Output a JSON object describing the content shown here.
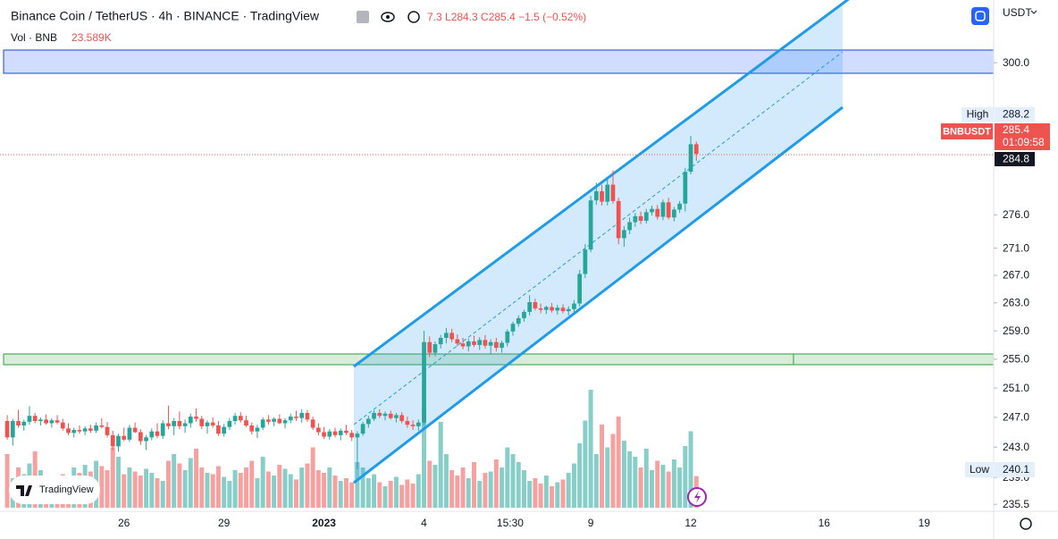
{
  "header": {
    "title": "Binance Coin / TetherUS · 4h · BINANCE · TradingView",
    "ohlc": "7.3 L284.3 C285.4 −1.5 (−0.52%)",
    "vol_name": "Vol · BNB",
    "vol_value": "23.589K",
    "currency": "USDT",
    "logo": "TradingView"
  },
  "chart_data": {
    "type": "candlestick",
    "log": true,
    "ylim": [
      234.6,
      310.5
    ],
    "xlim": [
      -1.3,
      177.5
    ],
    "vol_lim": [
      0,
      100
    ],
    "up_color": "#26a69a",
    "down_color": "#ef5350",
    "yticks": [
      {
        "value": 235.5,
        "label": "235.5"
      },
      {
        "value": 239,
        "label": "239.0"
      },
      {
        "value": 243,
        "label": "243.0"
      },
      {
        "value": 247,
        "label": "247.0"
      },
      {
        "value": 251,
        "label": "251.0"
      },
      {
        "value": 255,
        "label": "255.0"
      },
      {
        "value": 259,
        "label": "259.0"
      },
      {
        "value": 263,
        "label": "263.0"
      },
      {
        "value": 267,
        "label": "267.0"
      },
      {
        "value": 271,
        "label": "271.0"
      },
      {
        "value": 276,
        "label": "276.0"
      },
      {
        "value": 300,
        "label": "300.0"
      }
    ],
    "xticks": [
      {
        "value": 21,
        "label": "26"
      },
      {
        "value": 39,
        "label": "29"
      },
      {
        "value": 57,
        "label": "2023"
      },
      {
        "value": 75,
        "label": "4"
      },
      {
        "value": 90.5,
        "label": "15:30"
      },
      {
        "value": 105,
        "label": "9"
      },
      {
        "value": 123,
        "label": "12"
      },
      {
        "value": 147,
        "label": "16"
      },
      {
        "value": 165,
        "label": "19"
      }
    ],
    "high_label": "High",
    "high": 288.2,
    "symbol": "BNBUSDT",
    "last": 285.4,
    "countdown": "01:09:58",
    "mark_price": 284.8,
    "low_label": "Low",
    "low": 240.1,
    "candles": [
      [
        246.5,
        247.3,
        244.0,
        244.3
      ],
      [
        244.3,
        246.8,
        243.2,
        246.5
      ],
      [
        246.5,
        248.0,
        245.6,
        245.9
      ],
      [
        245.9,
        246.7,
        245.2,
        246.4
      ],
      [
        246.4,
        248.5,
        246.0,
        247.2
      ],
      [
        247.2,
        247.6,
        246.2,
        246.5
      ],
      [
        246.5,
        247.0,
        245.9,
        246.7
      ],
      [
        246.7,
        247.4,
        246.0,
        246.2
      ],
      [
        246.2,
        246.9,
        245.6,
        246.6
      ],
      [
        246.6,
        247.3,
        246.1,
        246.3
      ],
      [
        246.3,
        246.8,
        245.2,
        245.5
      ],
      [
        245.5,
        246.2,
        244.6,
        244.9
      ],
      [
        244.9,
        245.6,
        244.3,
        245.3
      ],
      [
        245.3,
        245.9,
        244.8,
        245.1
      ],
      [
        245.1,
        245.8,
        244.6,
        245.5
      ],
      [
        245.5,
        246.0,
        244.9,
        245.2
      ],
      [
        245.2,
        246.3,
        244.9,
        245.9
      ],
      [
        245.9,
        246.9,
        245.5,
        245.7
      ],
      [
        245.7,
        246.4,
        244.3,
        244.6
      ],
      [
        244.6,
        245.2,
        242.6,
        243.1
      ],
      [
        243.1,
        244.8,
        242.4,
        244.5
      ],
      [
        244.5,
        245.6,
        243.8,
        244.0
      ],
      [
        244.0,
        246.0,
        243.7,
        245.6
      ],
      [
        245.6,
        246.3,
        244.9,
        245.0
      ],
      [
        245.0,
        245.4,
        243.3,
        243.8
      ],
      [
        243.8,
        244.6,
        242.6,
        244.3
      ],
      [
        244.3,
        245.5,
        243.9,
        245.1
      ],
      [
        245.1,
        246.2,
        244.2,
        244.5
      ],
      [
        244.5,
        246.6,
        244.1,
        246.2
      ],
      [
        246.2,
        248.6,
        245.4,
        245.8
      ],
      [
        245.8,
        246.9,
        244.6,
        246.5
      ],
      [
        246.5,
        247.8,
        245.4,
        245.8
      ],
      [
        245.8,
        246.7,
        244.9,
        246.2
      ],
      [
        246.2,
        247.5,
        245.6,
        247.1
      ],
      [
        247.1,
        248.2,
        246.4,
        246.8
      ],
      [
        246.8,
        247.2,
        245.4,
        245.8
      ],
      [
        245.8,
        246.6,
        244.8,
        246.3
      ],
      [
        246.3,
        247.0,
        245.6,
        245.9
      ],
      [
        245.9,
        246.5,
        244.5,
        244.8
      ],
      [
        244.8,
        246.1,
        244.4,
        245.7
      ],
      [
        245.7,
        246.9,
        245.3,
        246.5
      ],
      [
        246.5,
        247.6,
        246.0,
        247.2
      ],
      [
        247.2,
        247.7,
        246.3,
        246.6
      ],
      [
        246.6,
        247.2,
        245.7,
        245.9
      ],
      [
        245.9,
        246.3,
        244.7,
        245.1
      ],
      [
        245.1,
        246.0,
        244.2,
        245.6
      ],
      [
        245.6,
        247.0,
        245.3,
        246.7
      ],
      [
        246.7,
        247.3,
        246.0,
        246.4
      ],
      [
        246.4,
        247.0,
        245.8,
        246.8
      ],
      [
        246.8,
        247.4,
        246.1,
        246.2
      ],
      [
        246.2,
        246.9,
        245.5,
        246.6
      ],
      [
        246.6,
        247.5,
        246.2,
        247.1
      ],
      [
        247.1,
        247.9,
        246.5,
        246.9
      ],
      [
        246.9,
        248.1,
        246.3,
        247.6
      ],
      [
        247.6,
        248.0,
        246.4,
        246.7
      ],
      [
        246.7,
        247.1,
        245.3,
        245.6
      ],
      [
        245.6,
        246.2,
        244.6,
        245.0
      ],
      [
        245.0,
        245.7,
        244.1,
        244.4
      ],
      [
        244.4,
        245.4,
        244.0,
        245.1
      ],
      [
        245.1,
        245.6,
        244.3,
        244.6
      ],
      [
        244.6,
        245.5,
        243.9,
        245.2
      ],
      [
        245.2,
        246.0,
        244.6,
        244.9
      ],
      [
        244.9,
        245.3,
        243.8,
        244.3
      ],
      [
        244.3,
        245.1,
        240.1,
        244.8
      ],
      [
        244.8,
        246.4,
        244.5,
        246.1
      ],
      [
        246.1,
        247.2,
        245.6,
        246.8
      ],
      [
        246.8,
        248.0,
        246.5,
        247.6
      ],
      [
        247.6,
        248.1,
        246.9,
        247.2
      ],
      [
        247.2,
        247.8,
        246.6,
        247.5
      ],
      [
        247.5,
        247.9,
        246.7,
        246.9
      ],
      [
        246.9,
        247.6,
        246.3,
        247.3
      ],
      [
        247.3,
        247.7,
        246.2,
        246.5
      ],
      [
        246.5,
        247.1,
        245.6,
        246.0
      ],
      [
        246.0,
        246.6,
        245.3,
        245.8
      ],
      [
        245.8,
        246.7,
        245.2,
        246.3
      ],
      [
        246.3,
        259.0,
        246.0,
        257.4
      ],
      [
        257.4,
        258.2,
        255.3,
        255.9
      ],
      [
        255.9,
        257.5,
        255.4,
        257.1
      ],
      [
        257.1,
        258.4,
        256.5,
        258.0
      ],
      [
        258.0,
        259.4,
        257.2,
        258.7
      ],
      [
        258.7,
        259.3,
        257.4,
        257.8
      ],
      [
        257.8,
        258.5,
        256.8,
        257.2
      ],
      [
        257.2,
        258.0,
        256.4,
        256.8
      ],
      [
        256.8,
        257.9,
        256.1,
        257.5
      ],
      [
        257.5,
        258.3,
        256.7,
        257.0
      ],
      [
        257.0,
        258.1,
        256.3,
        257.7
      ],
      [
        257.7,
        258.4,
        256.5,
        256.9
      ],
      [
        256.9,
        257.8,
        255.8,
        257.4
      ],
      [
        257.4,
        258.0,
        256.1,
        256.6
      ],
      [
        256.6,
        257.6,
        255.9,
        257.3
      ],
      [
        257.3,
        259.2,
        256.8,
        258.9
      ],
      [
        258.9,
        260.3,
        258.3,
        260.0
      ],
      [
        260.0,
        261.2,
        259.6,
        260.8
      ],
      [
        260.8,
        262.0,
        260.3,
        261.7
      ],
      [
        261.7,
        264.1,
        261.2,
        263.1
      ],
      [
        263.1,
        263.6,
        261.9,
        262.2
      ],
      [
        262.2,
        262.9,
        261.5,
        262.0
      ],
      [
        262.0,
        262.6,
        261.4,
        262.4
      ],
      [
        262.4,
        263.0,
        261.6,
        261.9
      ],
      [
        261.9,
        262.7,
        261.3,
        262.3
      ],
      [
        262.3,
        262.8,
        261.5,
        261.8
      ],
      [
        261.8,
        262.5,
        261.2,
        262.1
      ],
      [
        262.1,
        263.4,
        261.6,
        262.9
      ],
      [
        262.9,
        267.8,
        262.5,
        267.2
      ],
      [
        267.2,
        271.6,
        266.6,
        270.8
      ],
      [
        270.8,
        278.9,
        270.4,
        278.2
      ],
      [
        278.2,
        280.9,
        277.5,
        279.6
      ],
      [
        279.6,
        280.6,
        277.4,
        278.0
      ],
      [
        278.0,
        281.5,
        277.4,
        280.6
      ],
      [
        280.6,
        282.8,
        277.7,
        278.1
      ],
      [
        278.1,
        278.6,
        271.6,
        272.5
      ],
      [
        272.5,
        274.3,
        271.2,
        273.7
      ],
      [
        273.7,
        275.6,
        273.1,
        274.9
      ],
      [
        274.9,
        276.3,
        274.2,
        275.8
      ],
      [
        275.8,
        276.5,
        274.6,
        275.1
      ],
      [
        275.1,
        276.9,
        274.7,
        276.4
      ],
      [
        276.4,
        277.4,
        275.9,
        276.9
      ],
      [
        276.9,
        277.5,
        275.3,
        275.7
      ],
      [
        275.7,
        278.3,
        275.2,
        277.9
      ],
      [
        277.9,
        278.6,
        275.3,
        275.6
      ],
      [
        275.6,
        277.2,
        275.0,
        276.8
      ],
      [
        276.8,
        278.1,
        276.3,
        277.7
      ],
      [
        277.7,
        283.2,
        276.5,
        282.6
      ],
      [
        282.6,
        288.2,
        282.2,
        286.9
      ],
      [
        286.9,
        287.3,
        284.3,
        285.4
      ]
    ],
    "volumes": [
      40,
      22,
      30,
      25,
      33,
      42,
      28,
      18,
      20,
      17,
      25,
      22,
      30,
      26,
      32,
      27,
      35,
      31,
      28,
      45,
      38,
      25,
      30,
      27,
      24,
      29,
      26,
      22,
      20,
      35,
      40,
      33,
      28,
      37,
      44,
      30,
      26,
      25,
      31,
      23,
      20,
      28,
      26,
      30,
      35,
      22,
      38,
      27,
      24,
      32,
      29,
      25,
      21,
      30,
      33,
      45,
      28,
      26,
      30,
      24,
      20,
      22,
      19,
      34,
      30,
      22,
      25,
      19,
      16,
      20,
      23,
      17,
      21,
      18,
      25,
      75,
      35,
      32,
      64,
      40,
      28,
      24,
      30,
      22,
      34,
      20,
      26,
      27,
      36,
      30,
      45,
      40,
      34,
      28,
      20,
      22,
      18,
      24,
      16,
      19,
      21,
      26,
      33,
      48,
      65,
      88,
      40,
      62,
      45,
      55,
      68,
      50,
      42,
      38,
      30,
      44,
      28,
      35,
      32,
      27,
      36,
      30,
      46,
      57,
      23.589
    ]
  }
}
